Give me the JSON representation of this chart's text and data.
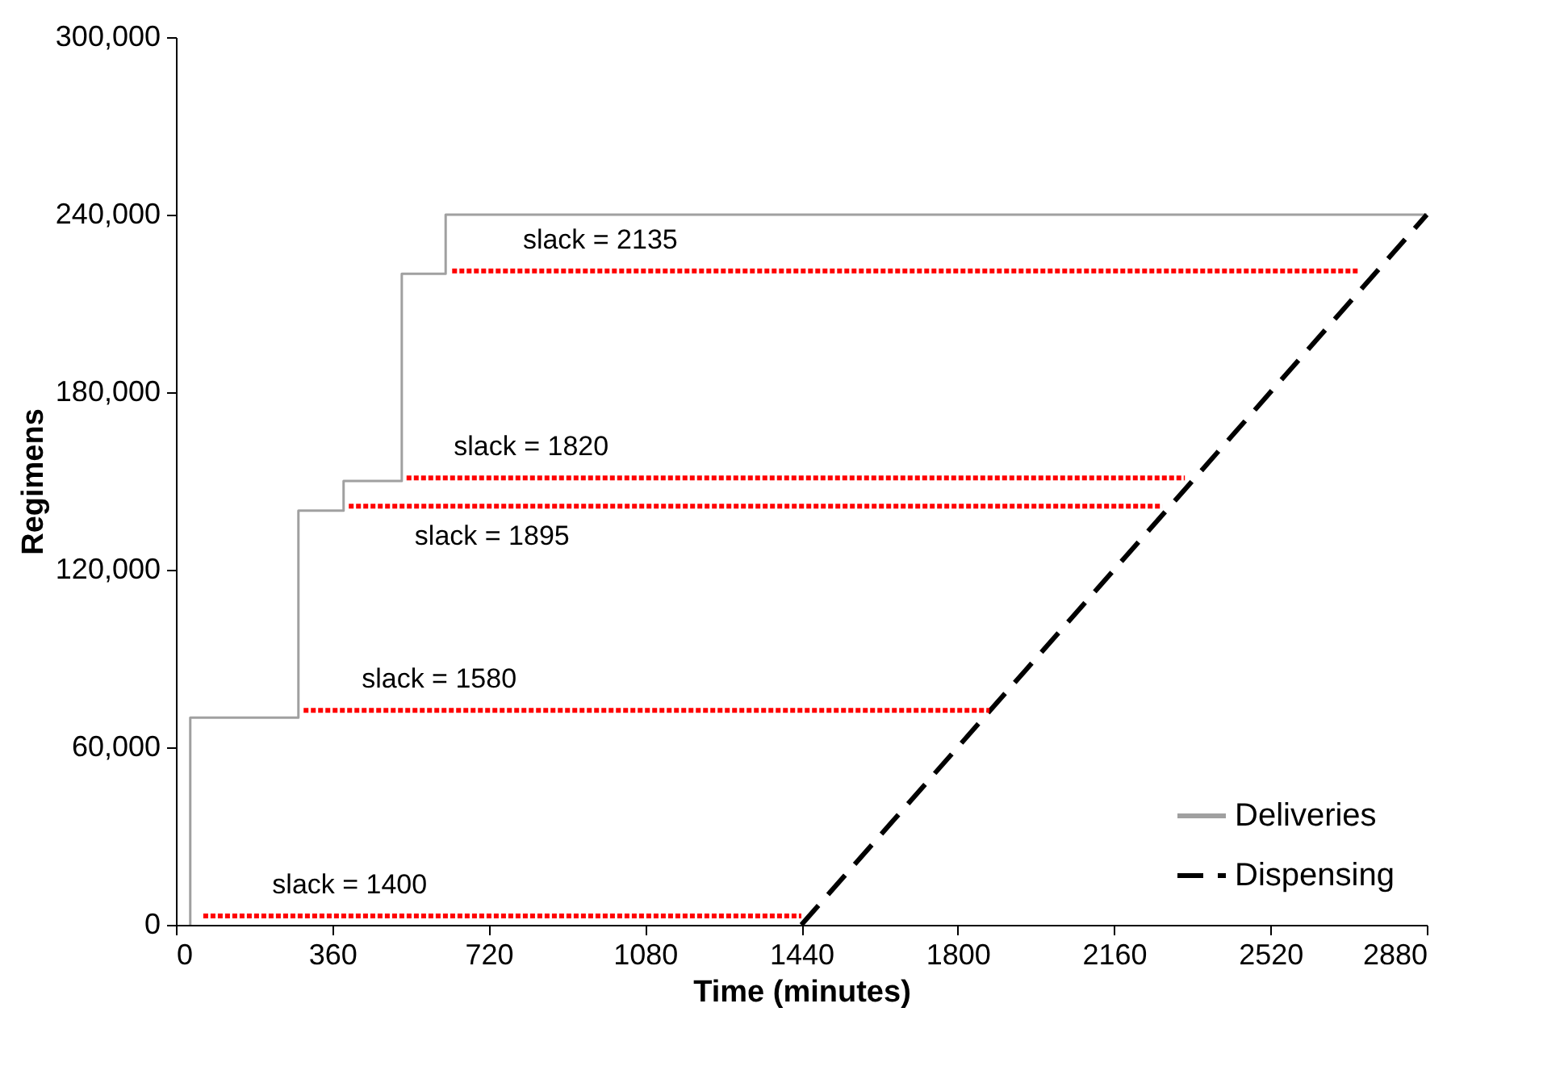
{
  "chart_data": {
    "type": "line",
    "xlabel": "Time (minutes)",
    "ylabel": "Regimens",
    "xlim": [
      0,
      2880
    ],
    "xticks": [
      0,
      360,
      720,
      1080,
      1440,
      1800,
      2160,
      2520,
      2880
    ],
    "ylim": [
      0,
      300000
    ],
    "yticks": [
      {
        "value": 0,
        "label": "0"
      },
      {
        "value": 60000,
        "label": "60,000"
      },
      {
        "value": 120000,
        "label": "120,000"
      },
      {
        "value": 180000,
        "label": "180,000"
      },
      {
        "value": 240000,
        "label": "240,000"
      },
      {
        "value": 300000,
        "label": "300,000"
      }
    ],
    "grid": false,
    "legend": "bottom right",
    "series": [
      {
        "name": "Deliveries",
        "type": "step",
        "color": "#a0a0a0",
        "line_style": "solid",
        "x": [
          33,
          33,
          282,
          386,
          520,
          621,
          2880
        ],
        "values": [
          0,
          70000,
          140000,
          150000,
          220000,
          240000,
          240000
        ]
      },
      {
        "name": "Dispensing",
        "type": "line",
        "color": "#000000",
        "line_style": "dashed",
        "x": [
          1440,
          2880
        ],
        "values": [
          0,
          240000
        ]
      },
      {
        "type": "line",
        "color": "#ff0000",
        "line_style": "dotted",
        "x": [
          63,
          1440
        ],
        "values": [
          3000,
          3000
        ]
      },
      {
        "type": "line",
        "color": "#ff0000",
        "line_style": "dotted",
        "x": [
          294,
          1873
        ],
        "values": [
          72500,
          72500
        ]
      },
      {
        "type": "line",
        "color": "#ff0000",
        "line_style": "dotted",
        "x": [
          398,
          2271
        ],
        "values": [
          141500,
          141500
        ]
      },
      {
        "type": "line",
        "color": "#ff0000",
        "line_style": "dotted",
        "x": [
          531,
          2323
        ],
        "values": [
          151000,
          151000
        ]
      },
      {
        "type": "line",
        "color": "#ff0000",
        "line_style": "dotted",
        "x": [
          636,
          2724
        ],
        "values": [
          221000,
          221000
        ]
      }
    ],
    "annotations": [
      {
        "text": "slack = 1400",
        "x": 400,
        "y": 3000
      },
      {
        "text": "slack = 1580",
        "x": 606,
        "y": 72500
      },
      {
        "text": "slack = 1895",
        "x": 728,
        "y": 141500
      },
      {
        "text": "slack = 1820",
        "x": 818,
        "y": 151000
      },
      {
        "text": "slack = 2135",
        "x": 977,
        "y": 221000
      }
    ]
  }
}
